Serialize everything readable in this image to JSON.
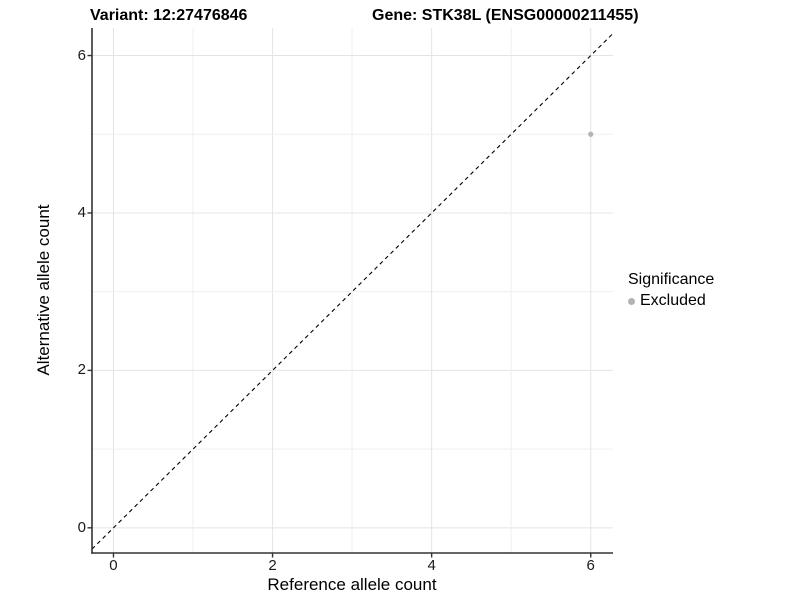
{
  "chart_data": {
    "type": "scatter",
    "titles": {
      "variant": "Variant: 12:27476846",
      "gene": "Gene: STK38L (ENSG00000211455)"
    },
    "xlabel": "Reference allele count",
    "ylabel": "Alternative allele count",
    "xlim": [
      -0.27,
      6.28
    ],
    "ylim": [
      -0.32,
      6.35
    ],
    "x_ticks": [
      0,
      2,
      4,
      6
    ],
    "y_ticks": [
      0,
      2,
      4,
      6
    ],
    "gridline_values": [
      0,
      1,
      2,
      3,
      4,
      5,
      6
    ],
    "grid_on": true,
    "reference_line": {
      "kind": "identity y=x",
      "style": "dashed",
      "color": "#000000"
    },
    "series": [
      {
        "name": "Excluded",
        "marker": "circle",
        "color": "#b3b3b3",
        "points": [
          {
            "x": 6,
            "y": 5
          }
        ]
      }
    ],
    "legend": {
      "title": "Significance",
      "position": "right",
      "entries": [
        {
          "label": "Excluded",
          "color": "#b3b3b3"
        }
      ]
    },
    "colors": {
      "axis_line": "#333333",
      "grid_major": "#e4e4e4",
      "grid_minor": "#efefef",
      "tick_text": "#1a1a1a"
    }
  }
}
